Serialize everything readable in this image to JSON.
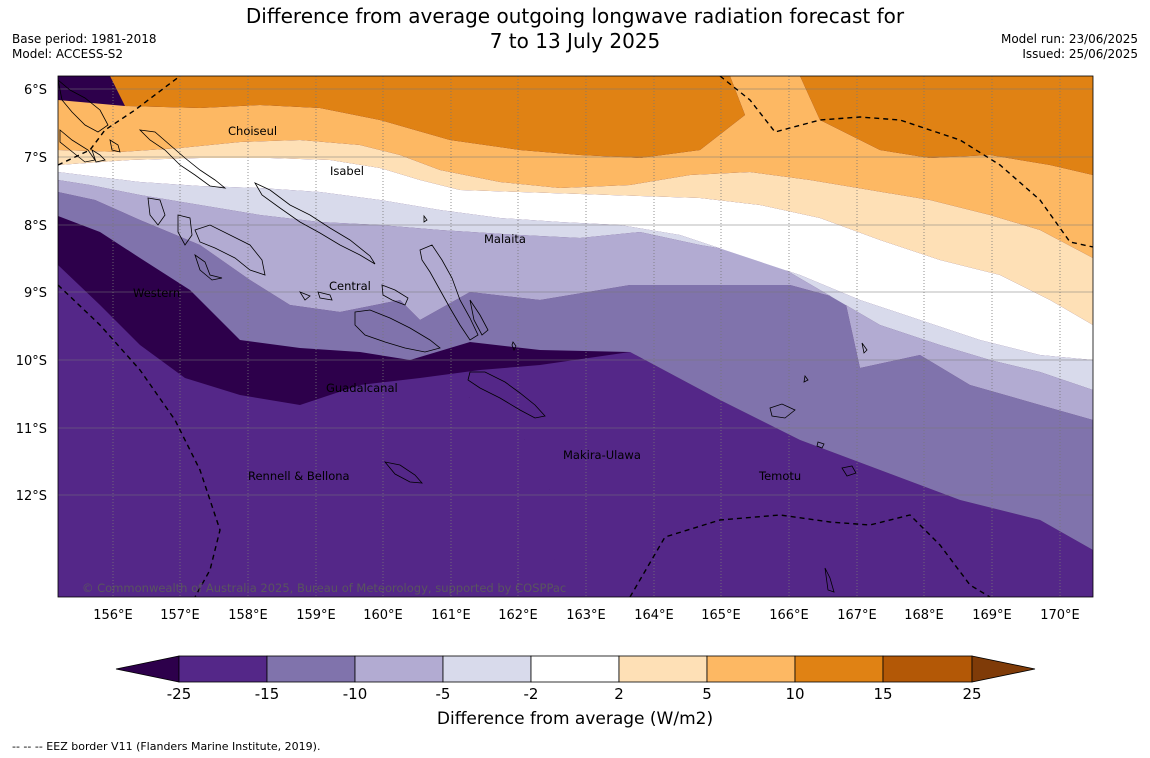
{
  "header": {
    "title_line1": "Difference from average outgoing longwave radiation forecast for",
    "title_line2": "7 to 13 July 2025",
    "base_period": "Base period: 1981-2018",
    "model": "Model: ACCESS-S2",
    "model_run": "Model run: 23/06/2025",
    "issued": "Issued: 25/06/2025"
  },
  "map": {
    "lon_labels": [
      "156°E",
      "157°E",
      "158°E",
      "159°E",
      "160°E",
      "161°E",
      "162°E",
      "163°E",
      "164°E",
      "165°E",
      "166°E",
      "167°E",
      "168°E",
      "169°E",
      "170°E"
    ],
    "lat_labels": [
      "6°S",
      "7°S",
      "8°S",
      "9°S",
      "10°S",
      "11°S",
      "12°S"
    ],
    "regions": [
      "Choiseul",
      "Isabel",
      "Malaita",
      "Western",
      "Central",
      "Guadalcanal",
      "Makira-Ulawa",
      "Rennell & Bellona",
      "Temotu"
    ],
    "copyright": "© Commonwealth of Australia 2025, Bureau of Meteorology, supported by COSPPac"
  },
  "colorbar": {
    "ticks": [
      "-25",
      "-15",
      "-10",
      "-5",
      "-2",
      "2",
      "5",
      "10",
      "15",
      "25"
    ],
    "colors": [
      "#2d004b",
      "#542788",
      "#8073ac",
      "#b2abd2",
      "#d8daeb",
      "#ffffff",
      "#fee0b6",
      "#fdb863",
      "#e08214",
      "#b35806",
      "#7f3b08"
    ],
    "title": "Difference from average (W/m2)"
  },
  "footer": {
    "legend": "--  --  -- EEZ border V11 (Flanders Marine Institute, 2019)."
  }
}
